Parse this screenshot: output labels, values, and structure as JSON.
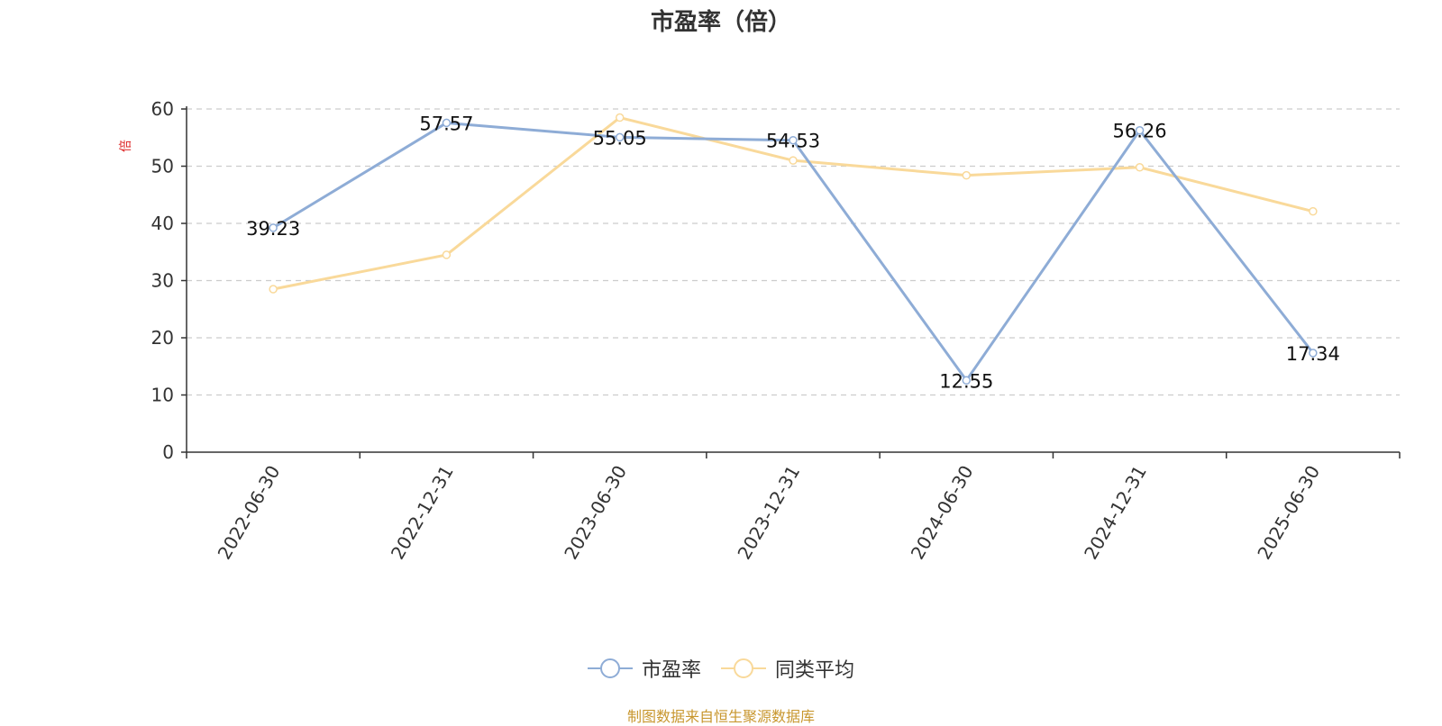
{
  "chart_data": {
    "type": "line",
    "title": "市盈率（倍）",
    "ylabel": "倍",
    "xlabel": "",
    "ylim": [
      0,
      60
    ],
    "yticks": [
      0,
      10,
      20,
      30,
      40,
      50,
      60
    ],
    "grid": true,
    "legend_position": "bottom",
    "categories": [
      "2022-06-30",
      "2022-12-31",
      "2023-06-30",
      "2023-12-31",
      "2024-06-30",
      "2024-12-31",
      "2025-06-30"
    ],
    "series": [
      {
        "name": "市盈率",
        "color": "#8eacd6",
        "values": [
          39.23,
          57.57,
          55.05,
          54.53,
          12.55,
          56.26,
          17.34
        ],
        "labels": [
          "39.23",
          "57.57",
          "55.05",
          "54.53",
          "12.55",
          "56.26",
          "17.34"
        ]
      },
      {
        "name": "同类平均",
        "color": "#f9d99a",
        "values": [
          28.5,
          34.5,
          58.5,
          51.0,
          48.4,
          49.8,
          42.1
        ]
      }
    ]
  },
  "footer": {
    "source": "制图数据来自恒生聚源数据库"
  }
}
